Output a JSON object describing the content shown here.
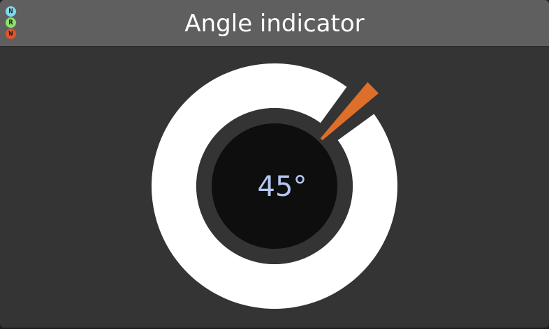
{
  "window": {
    "title": "Angle indicator"
  },
  "badges": [
    {
      "letter": "N",
      "color": "#7fd8ee"
    },
    {
      "letter": "R",
      "color": "#8ee06a"
    },
    {
      "letter": "W",
      "color": "#e0562a"
    }
  ],
  "indicator": {
    "angle_degrees": 45,
    "angle_label": "45°",
    "ring_color": "#ffffff",
    "inner_disc_color": "#0e0e0e",
    "needle_color": "#dd6f2a",
    "readout_color": "#b4c6f2"
  }
}
